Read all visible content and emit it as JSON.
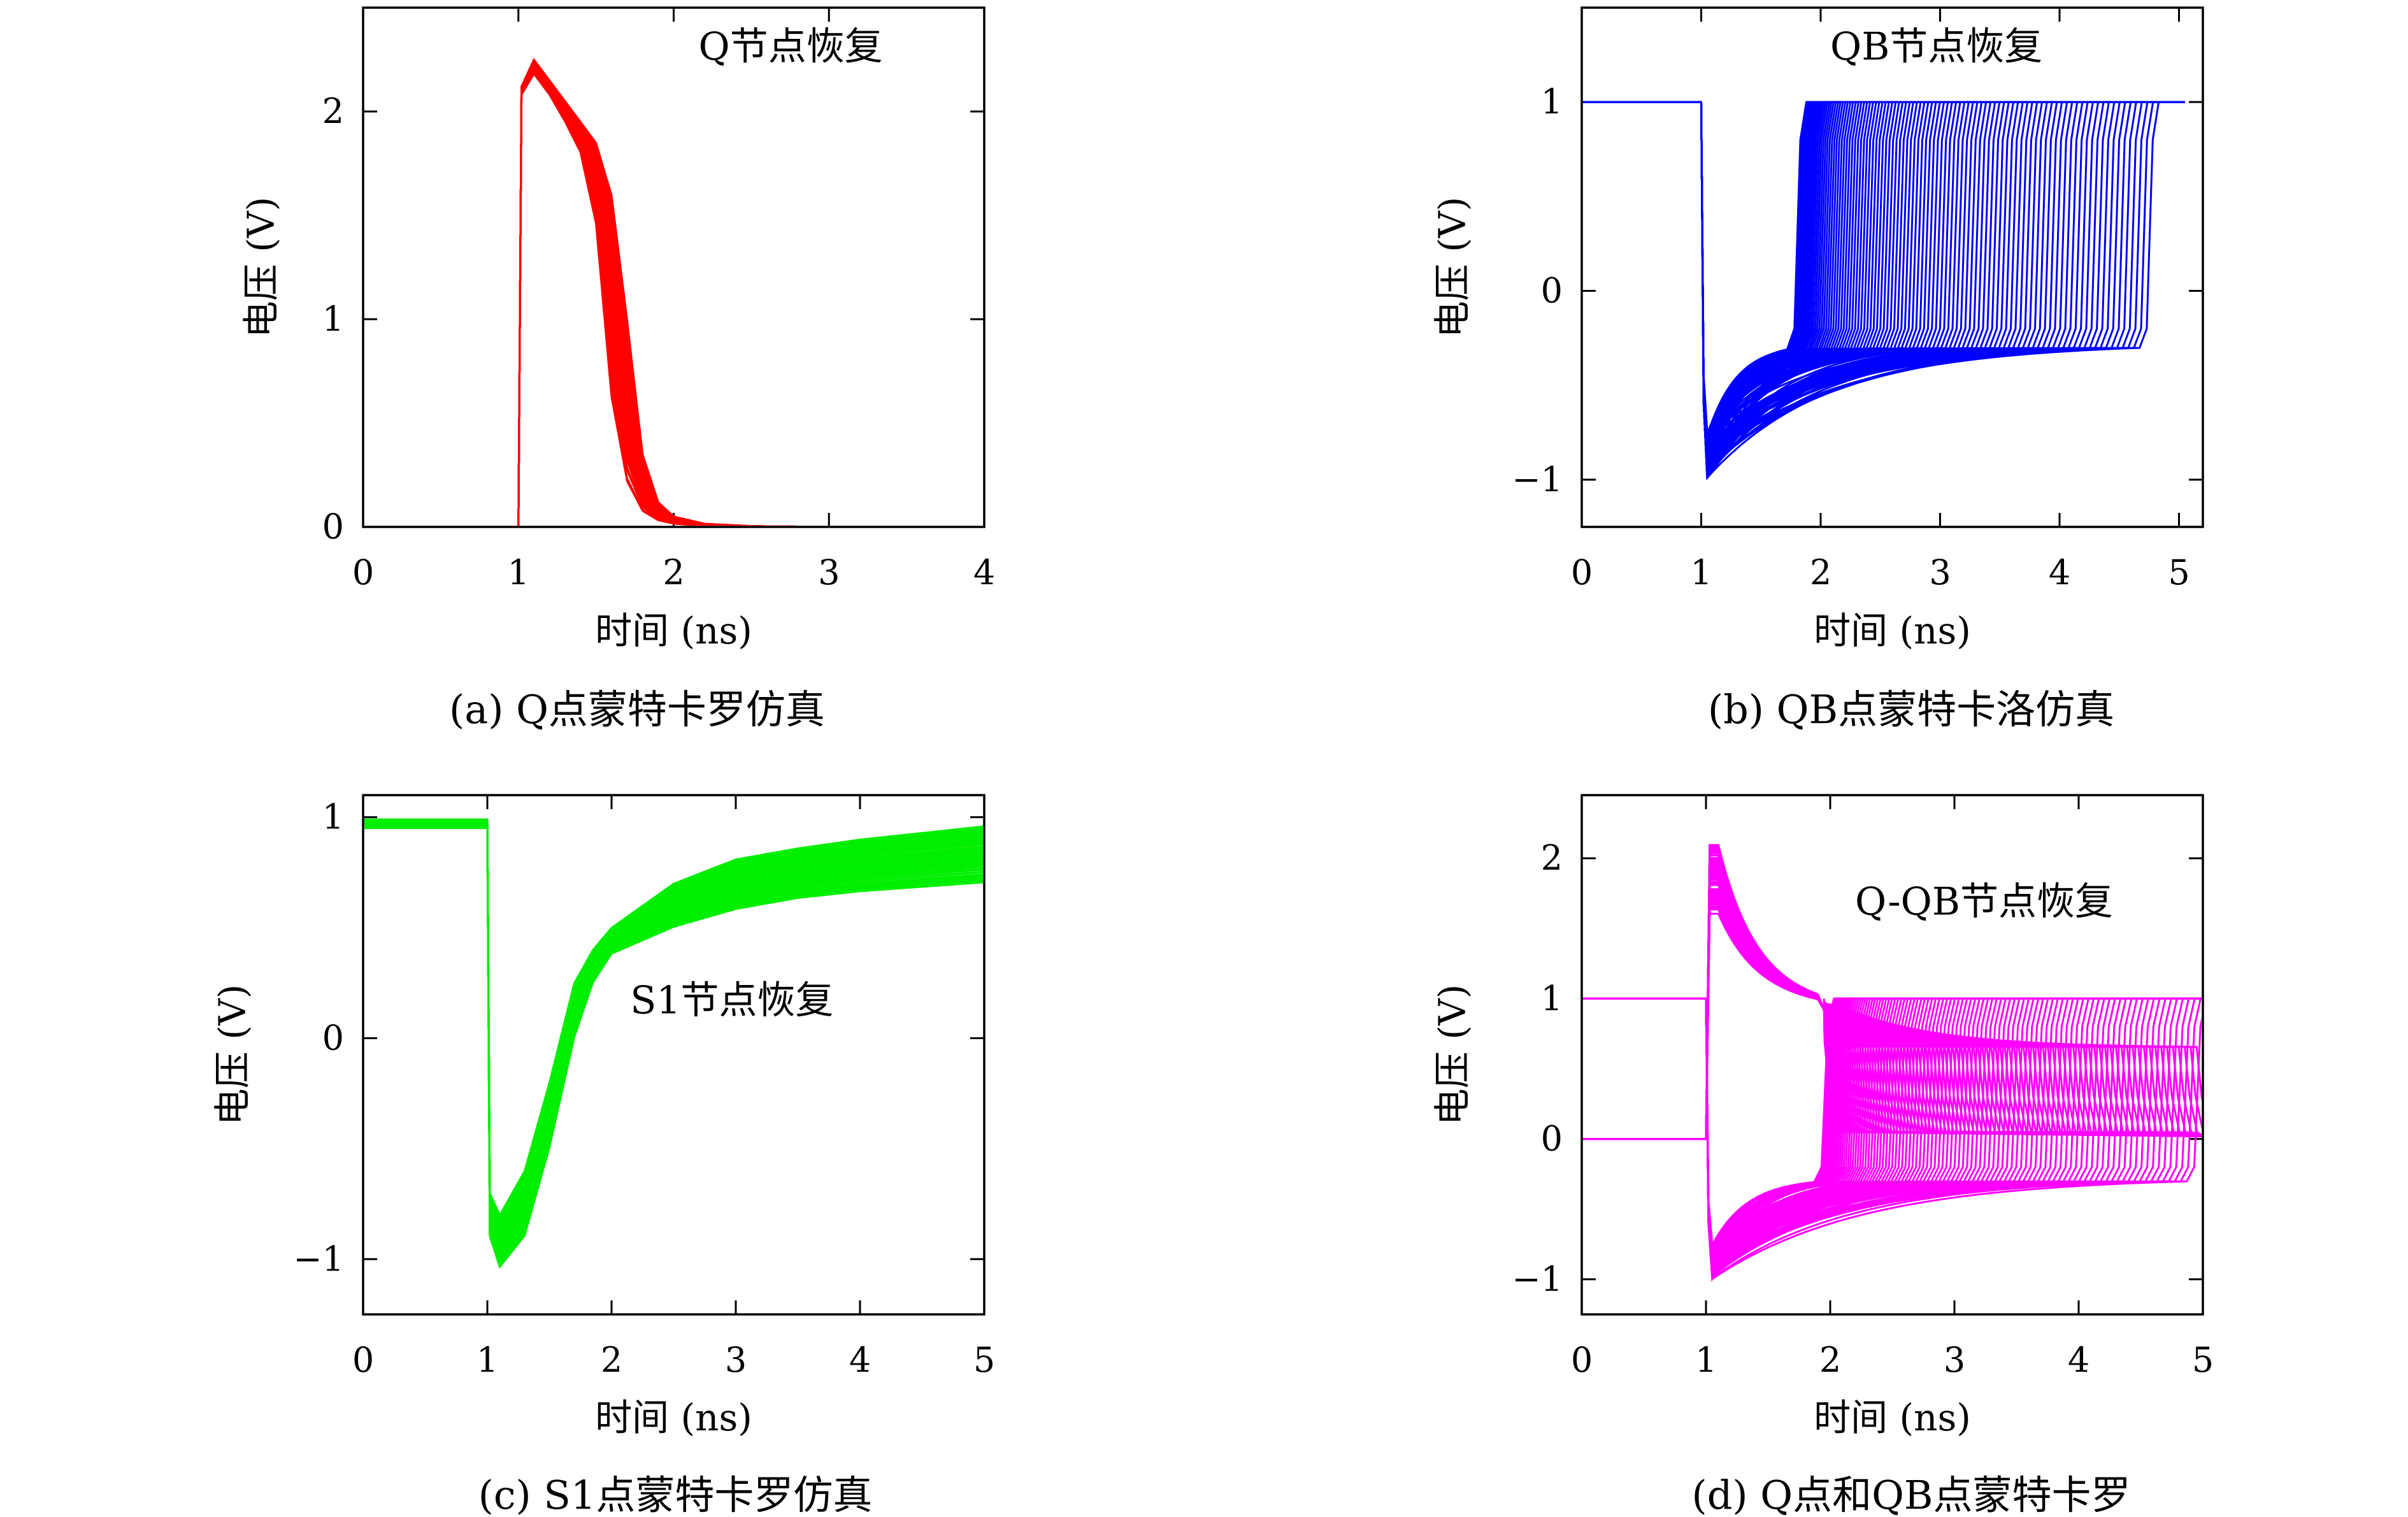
{
  "colors": {
    "a": "#ff0000",
    "b": "#0000ff",
    "c": "#00ee00",
    "d": "#ff00ff",
    "axis": "#000000"
  },
  "chart_data": [
    {
      "id": "a",
      "type": "line",
      "caption": "(a) Q点蒙特卡罗仿真",
      "annotation": "Q节点恢复",
      "xlabel": "时间 (ns)",
      "ylabel": "电压 (V)",
      "xlim": [
        0,
        4
      ],
      "ylim": [
        0,
        2.5
      ],
      "x_ticks": [
        0,
        1,
        2,
        3,
        4
      ],
      "x_tick_labels": [
        "0",
        "1",
        "2",
        "3",
        "4"
      ],
      "y_ticks": [
        0,
        1,
        2
      ],
      "y_tick_labels": [
        "0",
        "1",
        "2"
      ],
      "grid": false,
      "series_count": 100,
      "envelope": {
        "x": [
          0,
          1.0,
          1.02,
          1.1,
          1.2,
          1.3,
          1.4,
          1.5,
          1.6,
          1.7,
          1.8,
          1.9,
          2.0,
          2.2,
          2.5,
          3.0,
          4.0
        ],
        "y_min": [
          0,
          0,
          2.08,
          2.18,
          2.08,
          1.95,
          1.8,
          1.45,
          0.6,
          0.2,
          0.07,
          0.03,
          0.015,
          0.005,
          0.001,
          0,
          0
        ],
        "y_max": [
          0,
          0,
          2.12,
          2.25,
          2.15,
          2.05,
          1.95,
          1.85,
          1.6,
          1.0,
          0.35,
          0.12,
          0.05,
          0.015,
          0.004,
          0,
          0
        ]
      }
    },
    {
      "id": "b",
      "type": "line",
      "caption": "(b) QB点蒙特卡洛仿真",
      "annotation": "QB节点恢复",
      "xlabel": "时间 (ns)",
      "ylabel": "电压 (V)",
      "xlim": [
        0,
        5.2
      ],
      "ylim": [
        -1.25,
        1.5
      ],
      "x_ticks": [
        0,
        1,
        2,
        3,
        4,
        5
      ],
      "x_tick_labels": [
        "0",
        "1",
        "2",
        "3",
        "4",
        "5"
      ],
      "y_ticks": [
        -1,
        0,
        1
      ],
      "y_tick_labels": [
        "−1",
        "0",
        "1"
      ],
      "grid": false,
      "series_count": 100,
      "pre_level": 1.0,
      "switch_x": 1.0,
      "min_range": [
        -1.0,
        -0.75
      ],
      "recovery_x_range": [
        1.8,
        4.75
      ],
      "final_level": 1.0,
      "end_x": 5.05
    },
    {
      "id": "c",
      "type": "line",
      "caption": "(c) S1点蒙特卡罗仿真",
      "annotation": "S1节点恢复",
      "xlabel": "时间 (ns)",
      "ylabel": "电压 (V)",
      "xlim": [
        0,
        5
      ],
      "ylim": [
        -1.25,
        1.1
      ],
      "x_ticks": [
        0,
        1,
        2,
        3,
        4,
        5
      ],
      "x_tick_labels": [
        "0",
        "1",
        "2",
        "3",
        "4",
        "5"
      ],
      "y_ticks": [
        -1,
        0,
        1
      ],
      "y_tick_labels": [
        "−1",
        "0",
        "1"
      ],
      "grid": false,
      "series_count": 100,
      "envelope": {
        "x": [
          0,
          1.0,
          1.02,
          1.1,
          1.3,
          1.5,
          1.7,
          1.85,
          2.0,
          2.5,
          3.0,
          3.5,
          4.0,
          4.5,
          5.0
        ],
        "y_min": [
          0.95,
          0.95,
          -0.9,
          -1.04,
          -0.9,
          -0.5,
          0.0,
          0.25,
          0.38,
          0.5,
          0.58,
          0.63,
          0.66,
          0.68,
          0.7
        ],
        "y_max": [
          0.99,
          0.99,
          -0.7,
          -0.8,
          -0.6,
          -0.2,
          0.25,
          0.4,
          0.5,
          0.7,
          0.81,
          0.86,
          0.9,
          0.93,
          0.96
        ]
      }
    },
    {
      "id": "d",
      "type": "line",
      "caption": "(d) Q点和QB点蒙特卡罗",
      "annotation": "Q-QB节点恢复",
      "xlabel": "时间 (ns)",
      "ylabel": "电压 (V)",
      "xlim": [
        0,
        5
      ],
      "ylim": [
        -1.25,
        2.45
      ],
      "x_ticks": [
        0,
        1,
        2,
        3,
        4,
        5
      ],
      "x_tick_labels": [
        "0",
        "1",
        "2",
        "3",
        "4",
        "5"
      ],
      "y_ticks": [
        -1,
        0,
        1,
        2
      ],
      "y_tick_labels": [
        "−1",
        "0",
        "1",
        "2"
      ],
      "grid": false,
      "series_count": 100,
      "q_pre_level": 0.0,
      "qb_pre_level": 1.0,
      "switch_x": 1.0,
      "q_peak_range": [
        1.6,
        2.1
      ],
      "qb_min_range": [
        -1.0,
        -0.75
      ],
      "recovery_x_range": [
        1.95,
        4.95
      ],
      "high_level": 1.0,
      "mid_level": 0.65
    }
  ]
}
